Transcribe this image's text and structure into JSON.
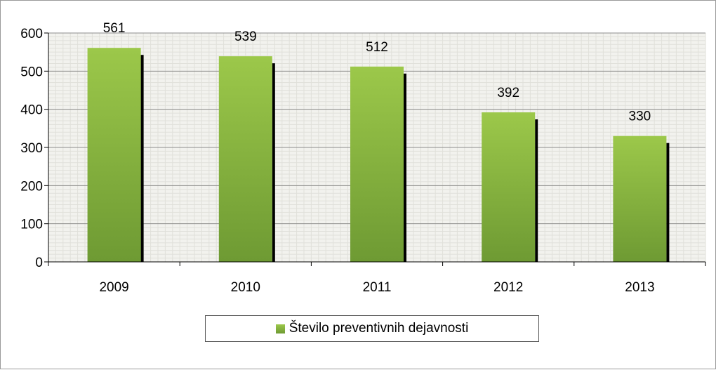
{
  "chart_data": {
    "type": "bar",
    "categories": [
      "2009",
      "2010",
      "2011",
      "2012",
      "2013"
    ],
    "series": [
      {
        "name": "Število preventivnih dejavnosti",
        "values": [
          561,
          539,
          512,
          392,
          330
        ]
      }
    ],
    "data_labels": [
      "561",
      "539",
      "512",
      "392",
      "330"
    ],
    "y_ticks": [
      "0",
      "100",
      "200",
      "300",
      "400",
      "500",
      "600"
    ],
    "ylim": [
      0,
      600
    ],
    "grid": true,
    "legend_position": "bottom",
    "colors": {
      "bar_top": "#9cc84a",
      "bar_bottom": "#6e9a33",
      "shadow": "#000000",
      "plot_bg": "#f2f2ee",
      "grid_major": "#8c8c8c",
      "grid_minor": "#e0e0da"
    }
  }
}
